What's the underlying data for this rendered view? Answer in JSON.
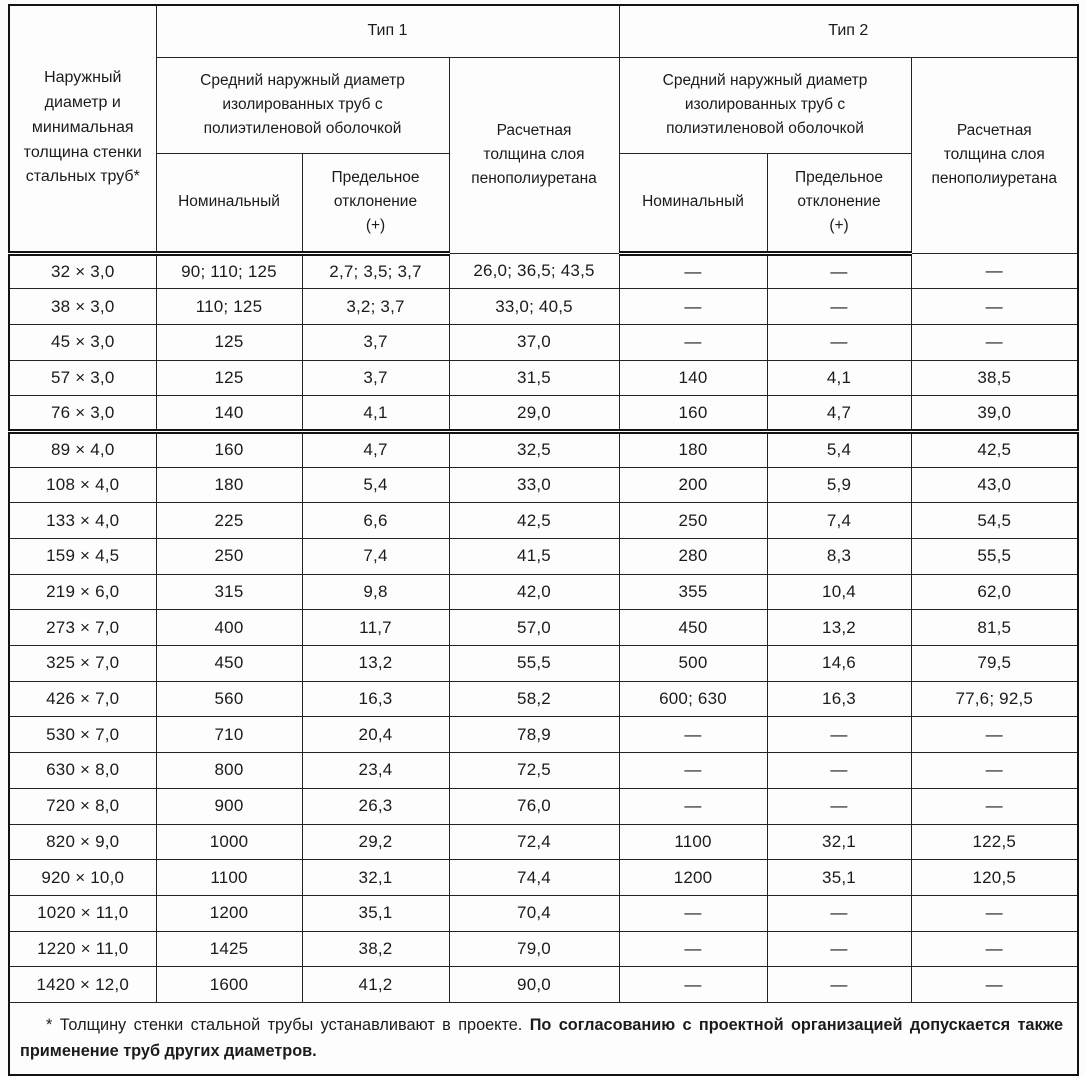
{
  "document": {
    "table": {
      "row_group_header": "Наружный\nдиаметр и\nминимальная\nтолщина стенки\nстальных труб*",
      "type_groups": [
        "Тип 1",
        "Тип 2"
      ],
      "avg_outer_diameter_header": "Средний наружный диаметр\nизолированных труб с\nполиэтиленовой оболочкой",
      "foam_layer_header": "Расчетная\nтолщина слоя\nпенополиуретана",
      "nominal_header": "Номинальный",
      "deviation_header": "Предельное\nотклонение\n(+)",
      "rows": [
        {
          "size": "32 × 3,0",
          "t1": [
            "90; 110; 125",
            "2,7; 3,5; 3,7",
            "26,0; 36,5; 43,5"
          ],
          "t2": [
            "—",
            "—",
            "—"
          ]
        },
        {
          "size": "38 × 3,0",
          "t1": [
            "110; 125",
            "3,2; 3,7",
            "33,0; 40,5"
          ],
          "t2": [
            "—",
            "—",
            "—"
          ]
        },
        {
          "size": "45 × 3,0",
          "t1": [
            "125",
            "3,7",
            "37,0"
          ],
          "t2": [
            "—",
            "—",
            "—"
          ]
        },
        {
          "size": "57 × 3,0",
          "t1": [
            "125",
            "3,7",
            "31,5"
          ],
          "t2": [
            "140",
            "4,1",
            "38,5"
          ]
        },
        {
          "size": "76 × 3,0",
          "t1": [
            "140",
            "4,1",
            "29,0"
          ],
          "t2": [
            "160",
            "4,7",
            "39,0"
          ]
        },
        {
          "size": "89 × 4,0",
          "t1": [
            "160",
            "4,7",
            "32,5"
          ],
          "t2": [
            "180",
            "5,4",
            "42,5"
          ]
        },
        {
          "size": "108 × 4,0",
          "t1": [
            "180",
            "5,4",
            "33,0"
          ],
          "t2": [
            "200",
            "5,9",
            "43,0"
          ]
        },
        {
          "size": "133 × 4,0",
          "t1": [
            "225",
            "6,6",
            "42,5"
          ],
          "t2": [
            "250",
            "7,4",
            "54,5"
          ]
        },
        {
          "size": "159 × 4,5",
          "t1": [
            "250",
            "7,4",
            "41,5"
          ],
          "t2": [
            "280",
            "8,3",
            "55,5"
          ]
        },
        {
          "size": "219 × 6,0",
          "t1": [
            "315",
            "9,8",
            "42,0"
          ],
          "t2": [
            "355",
            "10,4",
            "62,0"
          ]
        },
        {
          "size": "273 × 7,0",
          "t1": [
            "400",
            "11,7",
            "57,0"
          ],
          "t2": [
            "450",
            "13,2",
            "81,5"
          ]
        },
        {
          "size": "325 × 7,0",
          "t1": [
            "450",
            "13,2",
            "55,5"
          ],
          "t2": [
            "500",
            "14,6",
            "79,5"
          ]
        },
        {
          "size": "426 × 7,0",
          "t1": [
            "560",
            "16,3",
            "58,2"
          ],
          "t2": [
            "600; 630",
            "16,3",
            "77,6; 92,5"
          ]
        },
        {
          "size": "530 × 7,0",
          "t1": [
            "710",
            "20,4",
            "78,9"
          ],
          "t2": [
            "—",
            "—",
            "—"
          ]
        },
        {
          "size": "630 × 8,0",
          "t1": [
            "800",
            "23,4",
            "72,5"
          ],
          "t2": [
            "—",
            "—",
            "—"
          ]
        },
        {
          "size": "720 × 8,0",
          "t1": [
            "900",
            "26,3",
            "76,0"
          ],
          "t2": [
            "—",
            "—",
            "—"
          ]
        },
        {
          "size": "820 × 9,0",
          "t1": [
            "1000",
            "29,2",
            "72,4"
          ],
          "t2": [
            "1100",
            "32,1",
            "122,5"
          ]
        },
        {
          "size": "920 × 10,0",
          "t1": [
            "1100",
            "32,1",
            "74,4"
          ],
          "t2": [
            "1200",
            "35,1",
            "120,5"
          ]
        },
        {
          "size": "1020 × 11,0",
          "t1": [
            "1200",
            "35,1",
            "70,4"
          ],
          "t2": [
            "—",
            "—",
            "—"
          ]
        },
        {
          "size": "1220 × 11,0",
          "t1": [
            "1425",
            "38,2",
            "79,0"
          ],
          "t2": [
            "—",
            "—",
            "—"
          ]
        },
        {
          "size": "1420 × 12,0",
          "t1": [
            "1600",
            "41,2",
            "90,0"
          ],
          "t2": [
            "—",
            "—",
            "—"
          ]
        }
      ],
      "footnote": {
        "normal": "* Толщину стенки стальной трубы устанавливают в проекте. ",
        "bold": "По согласованию с проектной организацией допускается также применение труб других диаметров."
      }
    }
  }
}
